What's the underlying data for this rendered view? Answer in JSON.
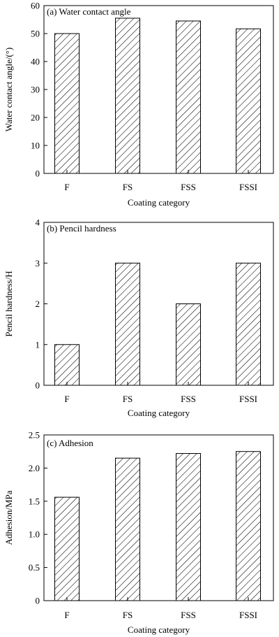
{
  "chart_data": [
    {
      "type": "bar",
      "title": "(a) Water contact angle",
      "xlabel": "Coating category",
      "ylabel": "Water contact angle/(°)",
      "categories": [
        "F",
        "FS",
        "FSS",
        "FSSI"
      ],
      "values": [
        50.0,
        55.5,
        54.5,
        51.7
      ],
      "ylim": [
        0,
        60
      ],
      "yticks": [
        "0",
        "10",
        "20",
        "30",
        "40",
        "50",
        "60"
      ],
      "ytick_values": [
        0,
        10,
        20,
        30,
        40,
        50,
        60
      ],
      "grid": false,
      "bar_fill": "hatched"
    },
    {
      "type": "bar",
      "title": "(b) Pencil hardness",
      "xlabel": "Coating category",
      "ylabel": "Pencil hardness/H",
      "categories": [
        "F",
        "FS",
        "FSS",
        "FSSI"
      ],
      "values": [
        1,
        3,
        2,
        3
      ],
      "ylim": [
        0,
        4
      ],
      "yticks": [
        "0",
        "1",
        "2",
        "3",
        "4"
      ],
      "ytick_values": [
        0,
        1,
        2,
        3,
        4
      ],
      "grid": false,
      "bar_fill": "hatched"
    },
    {
      "type": "bar",
      "title": "(c) Adhesion",
      "xlabel": "Coating category",
      "ylabel": "Adhesion/MPa",
      "categories": [
        "F",
        "FS",
        "FSS",
        "FSSI"
      ],
      "values": [
        1.56,
        2.15,
        2.22,
        2.25
      ],
      "ylim": [
        0,
        2.5
      ],
      "yticks": [
        "0",
        "0.5",
        "1.0",
        "1.5",
        "2.0",
        "2.5"
      ],
      "ytick_values": [
        0,
        0.5,
        1.0,
        1.5,
        2.0,
        2.5
      ],
      "grid": false,
      "bar_fill": "hatched"
    }
  ]
}
